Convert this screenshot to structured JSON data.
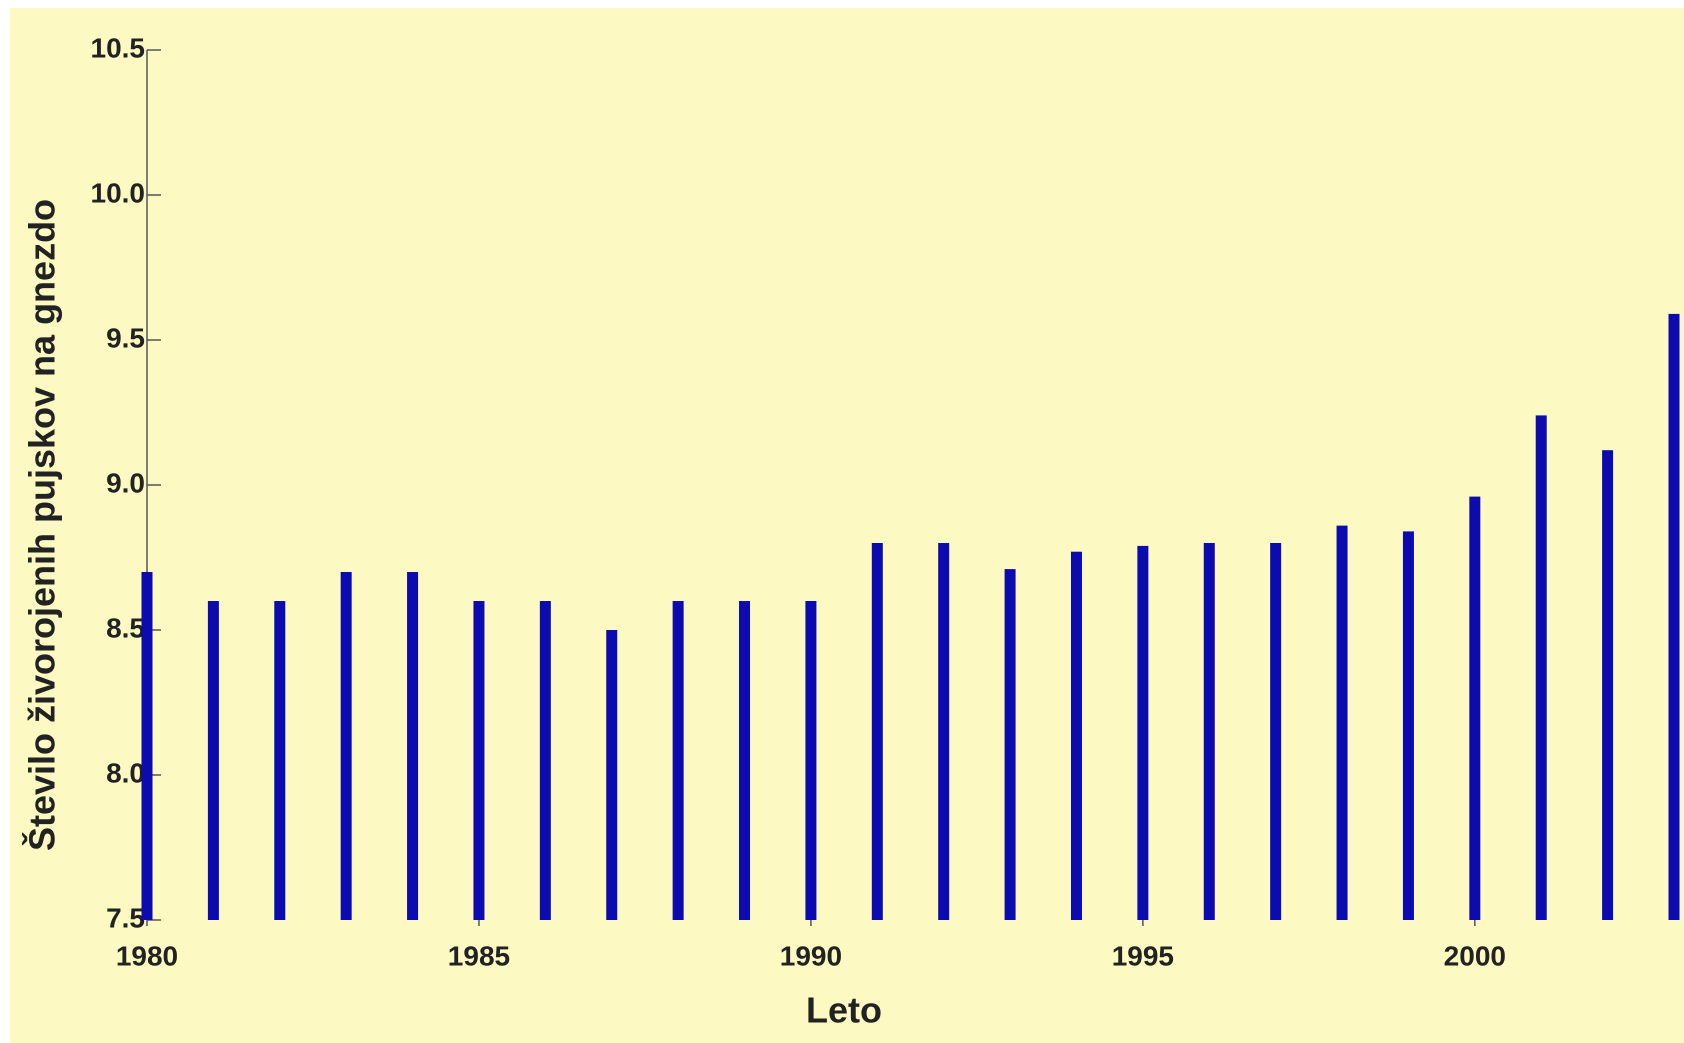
{
  "chart_data": {
    "type": "bar",
    "ylabel": "Število živorojenih pujskov na gnezdo",
    "xlabel": "Leto",
    "x": [
      1980,
      1981,
      1982,
      1983,
      1984,
      1985,
      1986,
      1987,
      1988,
      1989,
      1990,
      1991,
      1992,
      1993,
      1994,
      1995,
      1996,
      1997,
      1998,
      1999,
      2000,
      2001,
      2002,
      2003
    ],
    "values": [
      8.7,
      8.6,
      8.6,
      8.7,
      8.7,
      8.6,
      8.6,
      8.5,
      8.6,
      8.6,
      8.6,
      8.8,
      8.8,
      8.71,
      8.77,
      8.79,
      8.8,
      8.8,
      8.86,
      8.84,
      8.96,
      9.24,
      9.12,
      9.59
    ],
    "color": "#0b0bb0",
    "xlim": [
      1980,
      2003
    ],
    "xticks": [
      1980,
      1985,
      1990,
      1995,
      2000
    ],
    "ylim": [
      7.5,
      10.5
    ],
    "yticks": [
      {
        "value": 7.5,
        "label": "7.5"
      },
      {
        "value": 8,
        "label": "8.0"
      },
      8.5,
      {
        "value": 9,
        "label": "9.0"
      },
      9.5,
      {
        "value": 10,
        "label": "10.0"
      },
      10.5
    ]
  }
}
